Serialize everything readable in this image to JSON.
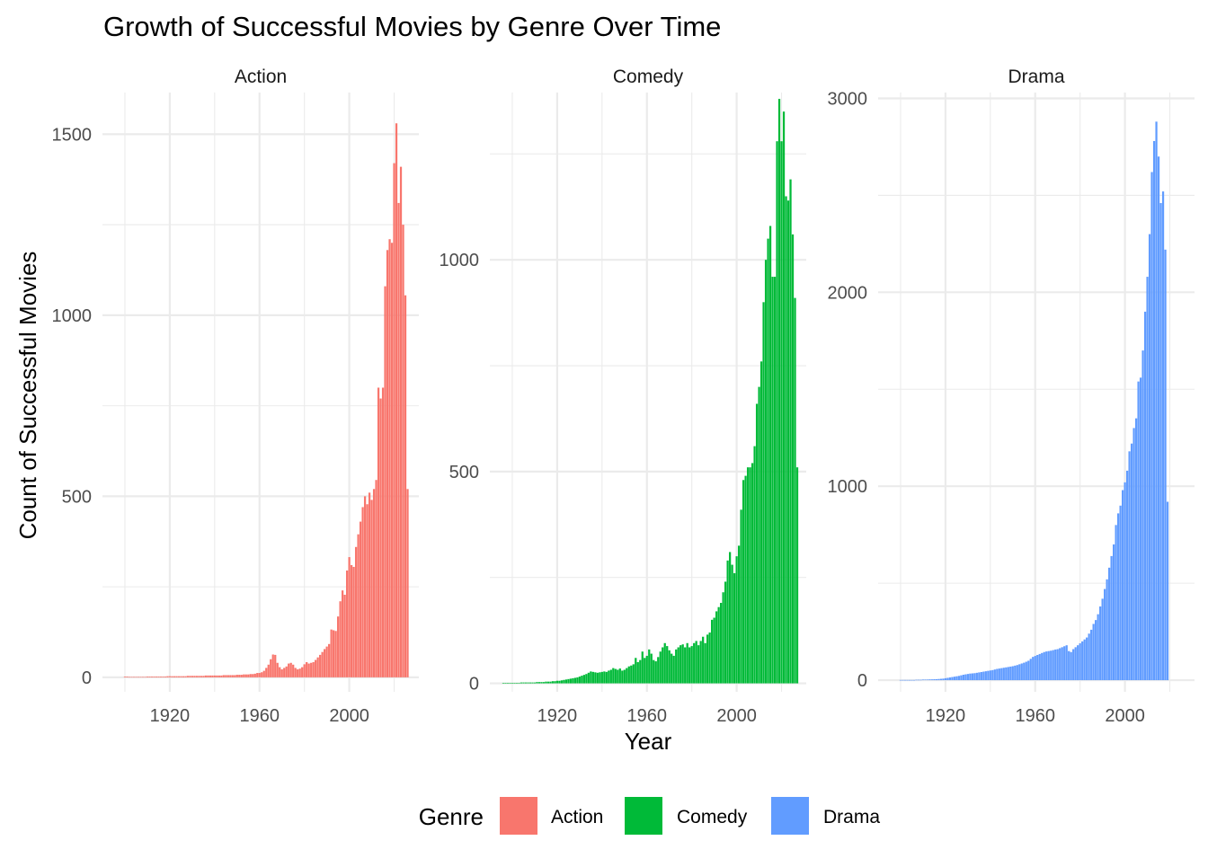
{
  "chart_data": {
    "type": "bar",
    "title": "Growth of Successful Movies by Genre Over Time",
    "xlabel": "Year",
    "ylabel": "Count of Successful Movies",
    "x_ticks": [
      1920,
      1960,
      2000
    ],
    "xlim": [
      1890,
      2031
    ],
    "grid": true,
    "legend": {
      "title": "Genre",
      "placement": "bottom",
      "entries": [
        {
          "label": "Action",
          "color": "#F8766D"
        },
        {
          "label": "Comedy",
          "color": "#00BA38"
        },
        {
          "label": "Drama",
          "color": "#619CFF"
        }
      ]
    },
    "facets": [
      {
        "name": "Action",
        "color": "#F8766D",
        "ylim": [
          -40,
          1615
        ],
        "y_ticks": [
          0,
          500,
          1000,
          1500
        ],
        "minor_ticks": [
          250,
          750,
          1250
        ],
        "years_start": 1900,
        "values": [
          2,
          2,
          1,
          1,
          1,
          1,
          1,
          1,
          1,
          1,
          2,
          2,
          2,
          2,
          2,
          2,
          2,
          2,
          2,
          3,
          3,
          3,
          3,
          3,
          3,
          3,
          3,
          3,
          4,
          4,
          4,
          4,
          4,
          4,
          4,
          4,
          5,
          5,
          5,
          5,
          5,
          5,
          5,
          5,
          6,
          6,
          6,
          6,
          6,
          6,
          7,
          7,
          7,
          8,
          8,
          8,
          9,
          9,
          10,
          12,
          12,
          14,
          18,
          26,
          35,
          50,
          63,
          62,
          40,
          28,
          22,
          26,
          30,
          38,
          40,
          35,
          26,
          22,
          24,
          28,
          36,
          42,
          38,
          40,
          42,
          48,
          55,
          62,
          70,
          78,
          85,
          92,
          132,
          130,
          128,
          168,
          210,
          240,
          228,
          295,
          332,
          310,
          305,
          360,
          395,
          430,
          470,
          500,
          478,
          510,
          490,
          520,
          545,
          800,
          770,
          800,
          1080,
          1180,
          1210,
          1200,
          1420,
          1530,
          1310,
          1410,
          1250,
          1055,
          520
        ]
      },
      {
        "name": "Comedy",
        "color": "#00BA38",
        "ylim": [
          -20,
          1395
        ],
        "y_ticks": [
          0,
          500,
          1000
        ],
        "minor_ticks": [
          250,
          750,
          1250
        ],
        "years_start": 1896,
        "values": [
          1,
          1,
          1,
          1,
          1,
          1,
          1,
          1,
          2,
          2,
          2,
          2,
          2,
          2,
          2,
          3,
          3,
          3,
          3,
          4,
          4,
          4,
          5,
          5,
          6,
          6,
          7,
          8,
          9,
          10,
          11,
          12,
          13,
          14,
          16,
          18,
          20,
          22,
          25,
          28,
          27,
          26,
          25,
          26,
          27,
          28,
          27,
          30,
          32,
          36,
          34,
          32,
          35,
          30,
          32,
          36,
          40,
          42,
          45,
          60,
          50,
          55,
          75,
          60,
          65,
          80,
          70,
          55,
          52,
          62,
          75,
          85,
          95,
          88,
          78,
          70,
          65,
          80,
          85,
          90,
          92,
          85,
          95,
          85,
          88,
          95,
          100,
          90,
          100,
          110,
          95,
          115,
          120,
          150,
          155,
          170,
          180,
          190,
          215,
          240,
          290,
          310,
          280,
          260,
          300,
          325,
          410,
          480,
          490,
          510,
          510,
          520,
          560,
          660,
          700,
          760,
          900,
          1000,
          1050,
          1080,
          960,
          960,
          1280,
          1380,
          1280,
          1350,
          1150,
          1140,
          1190,
          1060,
          910,
          510
        ]
      },
      {
        "name": "Drama",
        "color": "#619CFF",
        "ylim": [
          -60,
          3030
        ],
        "y_ticks": [
          0,
          1000,
          2000,
          3000
        ],
        "minor_ticks": [
          500,
          1500,
          2500
        ],
        "years_start": 1900,
        "values": [
          1,
          1,
          1,
          1,
          1,
          1,
          1,
          2,
          2,
          2,
          3,
          3,
          3,
          4,
          4,
          5,
          5,
          6,
          7,
          8,
          10,
          12,
          14,
          16,
          18,
          20,
          22,
          25,
          28,
          30,
          32,
          34,
          35,
          36,
          38,
          40,
          42,
          44,
          46,
          48,
          50,
          52,
          55,
          58,
          60,
          62,
          64,
          66,
          68,
          70,
          72,
          75,
          78,
          82,
          86,
          90,
          95,
          100,
          110,
          120,
          125,
          130,
          135,
          140,
          145,
          148,
          150,
          152,
          155,
          158,
          160,
          165,
          170,
          175,
          180,
          150,
          145,
          160,
          170,
          180,
          190,
          200,
          210,
          220,
          240,
          260,
          290,
          310,
          340,
          380,
          420,
          470,
          520,
          580,
          640,
          700,
          800,
          860,
          900,
          980,
          1020,
          1080,
          1180,
          1220,
          1300,
          1350,
          1540,
          1560,
          1700,
          1900,
          2080,
          2300,
          2620,
          2780,
          2880,
          2700,
          2460,
          2520,
          2220,
          920
        ]
      }
    ]
  }
}
